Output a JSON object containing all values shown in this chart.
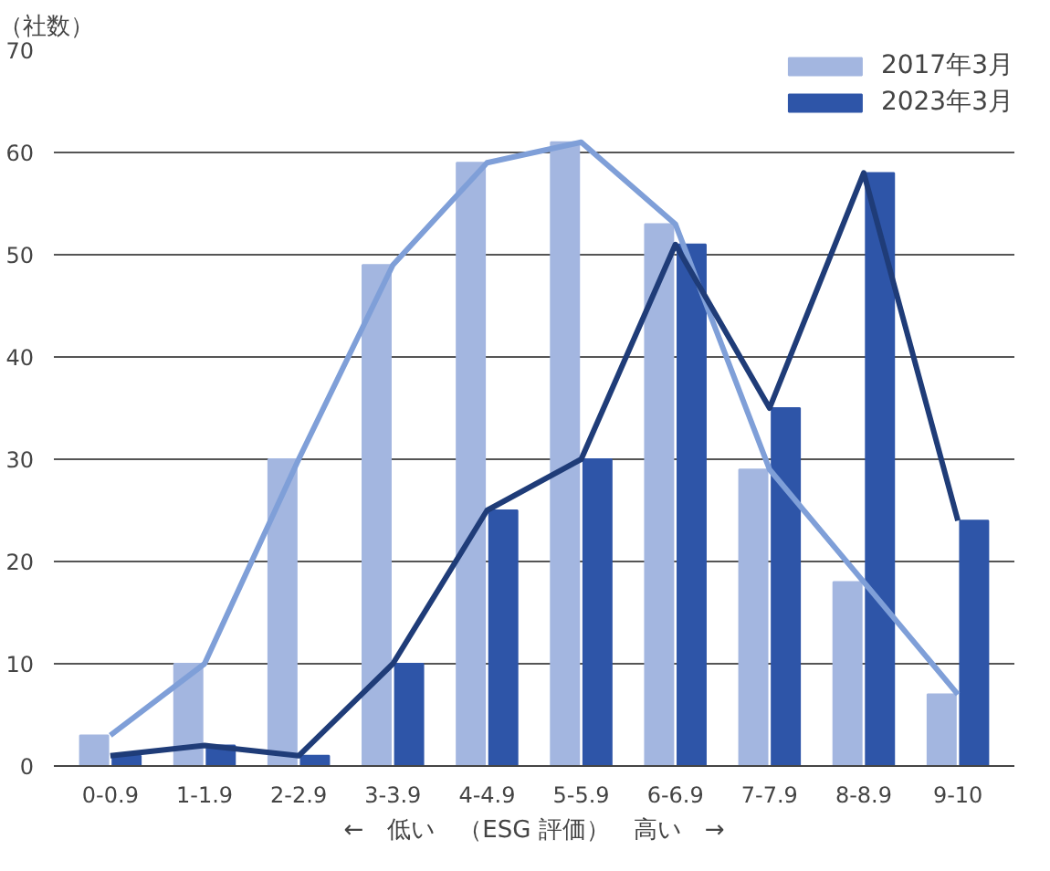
{
  "chart_data": {
    "type": "bar",
    "ylabel": "（社数）",
    "xlabel": "←　低い　（ESG 評価）　高い　→",
    "categories": [
      "0-0.9",
      "1-1.9",
      "2-2.9",
      "3-3.9",
      "4-4.9",
      "5-5.9",
      "6-6.9",
      "7-7.9",
      "8-8.9",
      "9-10"
    ],
    "series": [
      {
        "name": "2017年3月",
        "color": "#a3b6e0",
        "values": [
          3,
          10,
          30,
          49,
          59,
          61,
          53,
          29,
          18,
          7
        ]
      },
      {
        "name": "2023年3月",
        "color": "#2e55a8",
        "values": [
          1,
          2,
          1,
          10,
          25,
          30,
          51,
          35,
          58,
          24
        ]
      },
      {
        "type": "line",
        "color": "#7f9fd8",
        "values": [
          3,
          10,
          30,
          49,
          59,
          61,
          53,
          29,
          18,
          7
        ]
      },
      {
        "type": "line",
        "color": "#1f3c78",
        "values": [
          1,
          2,
          1,
          10,
          25,
          30,
          51,
          35,
          58,
          24
        ]
      }
    ],
    "ylim": [
      0,
      70
    ],
    "yticks": [
      0,
      10,
      20,
      30,
      40,
      50,
      60,
      70
    ],
    "grid": "y",
    "legend": "top right"
  }
}
